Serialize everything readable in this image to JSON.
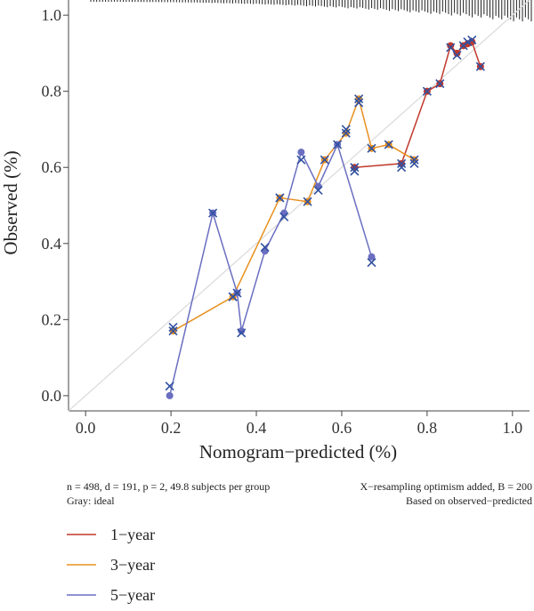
{
  "chart_data": {
    "type": "line",
    "xlabel": "Nomogram−predicted (%)",
    "ylabel": "Observed (%)",
    "xlim": [
      -0.04,
      1.04
    ],
    "ylim": [
      -0.04,
      1.04
    ],
    "x_ticks": [
      "0.0",
      "0.2",
      "0.4",
      "0.6",
      "0.8",
      "1.0"
    ],
    "y_ticks": [
      "0.0",
      "0.2",
      "0.4",
      "0.6",
      "0.8",
      "1.0"
    ],
    "grid": false,
    "legend_position": "bottom-left",
    "ideal_line": {
      "x": [
        0,
        1
      ],
      "y": [
        0,
        1
      ],
      "color": "#dcdcdc"
    },
    "notes_left": [
      "n = 498, d = 191, p = 2, 49.8 subjects per group",
      "Gray: ideal"
    ],
    "notes_right": [
      "X−resampling optimism added, B = 200",
      "Based on observed−predicted"
    ],
    "rug_note": "distribution of predictions (rug) along top edge",
    "series": [
      {
        "name": "1−year",
        "color": "#c0392b",
        "x": [
          0.63,
          0.74,
          0.8,
          0.83,
          0.855,
          0.87,
          0.885,
          0.895,
          0.905,
          0.925
        ],
        "apparent": [
          0.6,
          0.61,
          0.8,
          0.82,
          0.92,
          0.9,
          0.92,
          0.925,
          0.93,
          0.865
        ],
        "corrected": [
          0.6,
          0.61,
          0.8,
          0.82,
          0.915,
          0.895,
          0.92,
          0.93,
          0.935,
          0.865
        ]
      },
      {
        "name": "3−year",
        "color": "#e8901f",
        "x": [
          0.205,
          0.345,
          0.455,
          0.52,
          0.56,
          0.61,
          0.64,
          0.67,
          0.71,
          0.77
        ],
        "apparent": [
          0.17,
          0.26,
          0.52,
          0.51,
          0.62,
          0.69,
          0.78,
          0.65,
          0.66,
          0.62
        ],
        "corrected": [
          0.17,
          0.26,
          0.52,
          0.51,
          0.62,
          0.69,
          0.78,
          0.65,
          0.66,
          0.62
        ]
      },
      {
        "name": "5−year",
        "color": "#6a6ec0",
        "x": [
          0.197,
          0.298,
          0.355,
          0.365,
          0.42,
          0.465,
          0.505,
          0.545,
          0.59,
          0.67
        ],
        "apparent": [
          0.0,
          0.48,
          0.27,
          0.17,
          0.38,
          0.48,
          0.64,
          0.55,
          0.66,
          0.365
        ],
        "corrected": [
          0.025,
          0.48,
          0.27,
          0.165,
          0.39,
          0.47,
          0.62,
          0.54,
          0.66,
          0.35
        ]
      },
      {
        "name": "",
        "color": "#3a5aa8",
        "x": [
          0.63,
          0.74,
          0.77,
          0.61,
          0.64,
          0.205,
          0.345,
          0.455
        ],
        "apparent": [],
        "corrected": [
          0.59,
          0.6,
          0.61,
          0.7,
          0.77,
          0.18,
          0.26,
          0.52
        ]
      }
    ],
    "marker_styles": {
      "apparent": "dot",
      "corrected": "cross"
    },
    "cross_color": "#3050a0"
  }
}
